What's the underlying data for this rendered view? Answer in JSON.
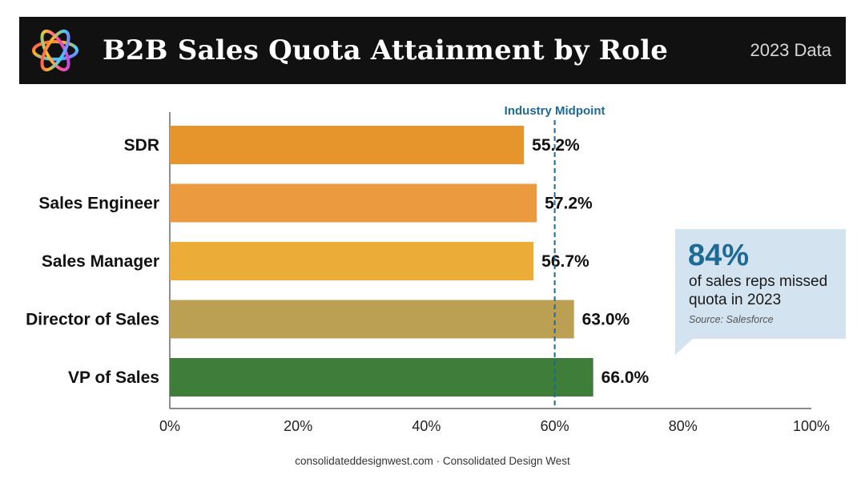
{
  "header": {
    "title": "B2B Sales Quota Attainment by Role",
    "year": "2023 Data"
  },
  "colors": {
    "header_bg": "#111111",
    "midpoint_line": "#1d6a96",
    "callout_bg": "#d3e3ef",
    "bar_orange": "#e69a2e",
    "bar_green": "#3f7d3a"
  },
  "chart_data": {
    "type": "bar",
    "orientation": "horizontal",
    "categories": [
      "SDR",
      "Sales Engineer",
      "Sales Manager",
      "Director of Sales",
      "VP of Sales"
    ],
    "values": [
      55.2,
      57.2,
      56.7,
      63.0,
      66.0
    ],
    "data_labels": [
      "55.2%",
      "57.2%",
      "56.7%",
      "63.0%",
      "66.0%"
    ],
    "bar_colors": [
      "#e5952c",
      "#eb9a40",
      "#ecac38",
      "#bba054",
      "#3f7d3a"
    ],
    "xlim": [
      0,
      100
    ],
    "xticks": [
      0,
      20,
      40,
      60,
      80,
      100
    ],
    "xtick_labels": [
      "0%",
      "20%",
      "40%",
      "60%",
      "80%",
      "100%"
    ],
    "reference_line": {
      "value": 60,
      "label": "Industry Midpoint",
      "style": "dashed"
    },
    "grid": false
  },
  "callout": {
    "value": "84%",
    "text": "of sales reps missed quota in 2023",
    "source": "Source: Salesforce"
  },
  "footer": {
    "text": "consolidateddesignwest.com · Consolidated Design West"
  }
}
